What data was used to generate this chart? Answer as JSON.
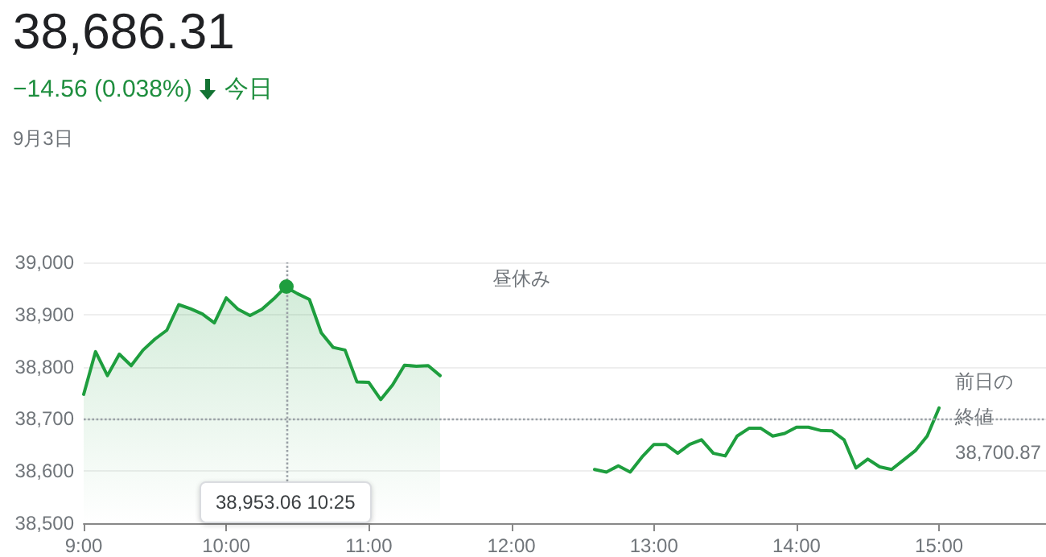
{
  "chart_data": {
    "type": "line",
    "title": "38,686.31",
    "subtitle": "−14.56 (0.038%)",
    "annotations": [
      "今日",
      "9月3日",
      "昼休み",
      "38,953.06 10:25",
      "38,700.87"
    ],
    "series": [
      {
        "type": "area",
        "color": "#1e9e3e",
        "x": [
          9,
          9.0833,
          9.1667,
          9.25,
          9.3333,
          9.4167,
          9.5,
          9.5833,
          9.6667,
          9.75,
          9.8333,
          9.9167,
          10,
          10.0833,
          10.1667,
          10.25,
          10.3333,
          10.4167,
          10.5,
          10.5833,
          10.6667,
          10.75,
          10.8333,
          10.9167,
          11,
          11.0833,
          11.1667,
          11.25,
          11.3333,
          11.4167,
          11.5
        ],
        "values": [
          38747,
          38829,
          38783,
          38824,
          38802,
          38832,
          38853,
          38870,
          38919,
          38911,
          38901,
          38884,
          38932,
          38910,
          38898,
          38910,
          38930,
          38953,
          38940,
          38929,
          38865,
          38837,
          38832,
          38771,
          38770,
          38737,
          38765,
          38803,
          38801,
          38802,
          38783
        ]
      },
      {
        "color": "#1e9e3e",
        "x": [
          12.5833,
          12.6667,
          12.75,
          12.8333,
          12.9167,
          13,
          13.0833,
          13.1667,
          13.25,
          13.3333,
          13.4167,
          13.5,
          13.5833,
          13.6667,
          13.75,
          13.8333,
          13.9167,
          14,
          14.0833,
          14.1667,
          14.25,
          14.3333,
          14.4167,
          14.5,
          14.5833,
          14.6667,
          14.75,
          14.8333,
          14.9167,
          15
        ],
        "values": [
          38603,
          38598,
          38610,
          38598,
          38627,
          38651,
          38651,
          38634,
          38651,
          38660,
          38634,
          38629,
          38667,
          38682,
          38682,
          38667,
          38672,
          38684,
          38684,
          38678,
          38677,
          38660,
          38606,
          38623,
          38608,
          38603,
          38621,
          38639,
          38667,
          38721
        ]
      }
    ],
    "xlim": [
      9,
      15.75
    ],
    "xticks": [
      {
        "value": 9,
        "label": "9:00"
      },
      {
        "value": 10,
        "label": "10:00"
      },
      {
        "value": 11,
        "label": "11:00"
      },
      {
        "value": 12,
        "label": "12:00"
      },
      {
        "value": 13,
        "label": "13:00"
      },
      {
        "value": 14,
        "label": "14:00"
      },
      {
        "value": 15,
        "label": "15:00"
      }
    ],
    "ylim": [
      38500,
      39000
    ],
    "yticks": [
      {
        "value": 38500,
        "label": "38,500"
      },
      {
        "value": 38600,
        "label": "38,600"
      },
      {
        "value": 38700,
        "label": "38,700"
      },
      {
        "value": 38800,
        "label": "38,800"
      },
      {
        "value": 38900,
        "label": "38,900"
      },
      {
        "value": 39000,
        "label": "39,000"
      }
    ],
    "ref_lines": [
      {
        "axis": "y",
        "value": 38700.87,
        "label": "前日の終値",
        "color": "#9aa0a6",
        "line_style": "dotted"
      },
      {
        "axis": "x",
        "value": 10.4167,
        "color": "#9aa0a6",
        "line_style": "dotted"
      }
    ],
    "grid": "y",
    "marker": "none",
    "line_style": "solid"
  }
}
